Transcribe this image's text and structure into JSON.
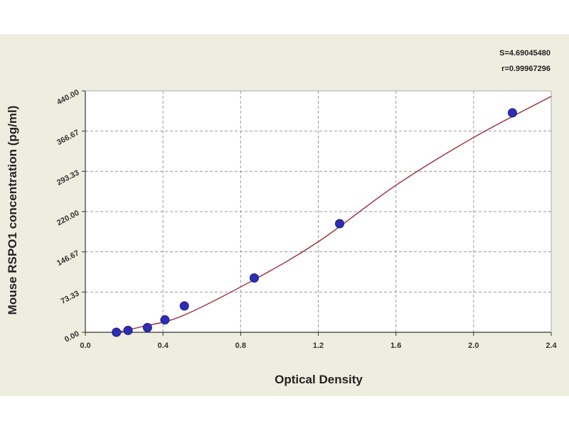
{
  "chart_data": {
    "type": "scatter",
    "title": "",
    "xlabel": "Optical Density",
    "ylabel": "Mouse RSPO1 concentration (pg/ml)",
    "xlim": [
      0.0,
      2.4
    ],
    "ylim": [
      0.0,
      440.0
    ],
    "x_ticks": [
      "0.0",
      "0.4",
      "0.8",
      "1.2",
      "1.6",
      "2.0",
      "2.4"
    ],
    "y_ticks": [
      "0.00",
      "73.33",
      "146.67",
      "220.00",
      "293.33",
      "366.67",
      "440.00"
    ],
    "grid": true,
    "stats": [
      "S=4.69045480",
      "r=0.99967296"
    ],
    "colors": {
      "points": "#2d2db4",
      "curve": "#9b2a3a",
      "grid": "#999999",
      "plot_bg": "#ffffff",
      "figure_bg": "#eeeee0"
    },
    "series": [
      {
        "points": [
          {
            "x": 0.16,
            "y": 0.0
          },
          {
            "x": 0.22,
            "y": 3.4
          },
          {
            "x": 0.32,
            "y": 8.6
          },
          {
            "x": 0.41,
            "y": 22.6
          },
          {
            "x": 0.51,
            "y": 48.0
          },
          {
            "x": 0.87,
            "y": 99.0
          },
          {
            "x": 1.31,
            "y": 198.0
          },
          {
            "x": 2.2,
            "y": 400.0
          }
        ]
      }
    ],
    "fit_curve": {
      "points": [
        {
          "x": 0.16,
          "y": 0.0
        },
        {
          "x": 0.3,
          "y": 11.0
        },
        {
          "x": 0.5,
          "y": 30.0
        },
        {
          "x": 0.87,
          "y": 96.0
        },
        {
          "x": 1.2,
          "y": 165.0
        },
        {
          "x": 1.6,
          "y": 268.0
        },
        {
          "x": 2.0,
          "y": 355.0
        },
        {
          "x": 2.4,
          "y": 430.0
        }
      ]
    }
  }
}
